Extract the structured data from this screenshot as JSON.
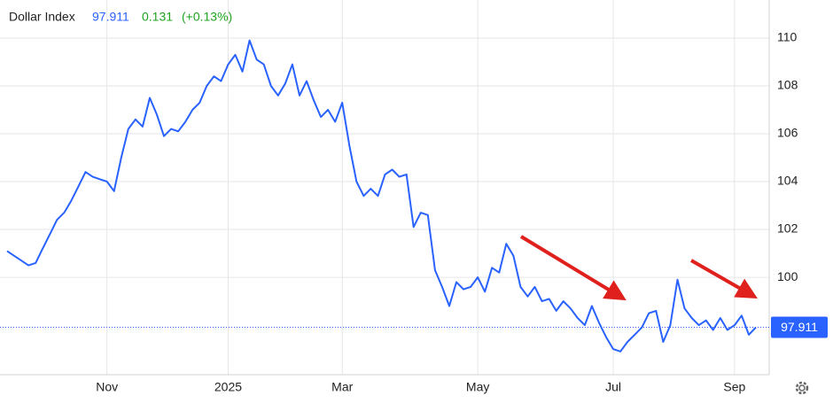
{
  "chart_data": {
    "type": "line",
    "title": "Dollar Index",
    "last_value": 97.911,
    "change": 0.131,
    "change_pct": "(+0.13%)",
    "categories": [
      null,
      null,
      null,
      null,
      null,
      null,
      null,
      null,
      null,
      null,
      null,
      null,
      null,
      null,
      "Nov",
      null,
      null,
      null,
      null,
      null,
      null,
      null,
      null,
      null,
      null,
      null,
      null,
      null,
      null,
      null,
      null,
      "2025",
      null,
      null,
      null,
      null,
      null,
      null,
      null,
      null,
      null,
      null,
      null,
      null,
      null,
      null,
      null,
      "Mar",
      null,
      null,
      null,
      null,
      null,
      null,
      null,
      null,
      null,
      null,
      null,
      null,
      null,
      null,
      null,
      null,
      null,
      null,
      "May",
      null,
      null,
      null,
      null,
      null,
      null,
      null,
      null,
      null,
      null,
      null,
      null,
      null,
      null,
      null,
      null,
      null,
      null,
      "Jul",
      null,
      null,
      null,
      null,
      null,
      null,
      null,
      null,
      null,
      null,
      null,
      null,
      null,
      null,
      null,
      null,
      "Sep",
      null,
      null,
      null
    ],
    "series": [
      {
        "name": "Dollar Index",
        "color": "#2962ff",
        "values": [
          101.1,
          100.9,
          100.7,
          100.5,
          100.6,
          101.2,
          101.8,
          102.4,
          102.7,
          103.2,
          103.8,
          104.4,
          104.2,
          104.1,
          104.0,
          103.6,
          105.0,
          106.2,
          106.6,
          106.3,
          107.5,
          106.8,
          105.9,
          106.2,
          106.1,
          106.5,
          107.0,
          107.3,
          108.0,
          108.4,
          108.2,
          108.9,
          109.3,
          108.6,
          109.9,
          109.1,
          108.9,
          108.0,
          107.6,
          108.1,
          108.9,
          107.6,
          108.2,
          107.4,
          106.7,
          107.0,
          106.5,
          107.3,
          105.5,
          104.0,
          103.4,
          103.7,
          103.4,
          104.3,
          104.5,
          104.2,
          104.3,
          102.1,
          102.7,
          102.6,
          100.3,
          99.6,
          98.8,
          99.8,
          99.5,
          99.6,
          100.0,
          99.4,
          100.4,
          100.2,
          101.4,
          100.9,
          99.6,
          99.2,
          99.6,
          99.0,
          99.1,
          98.6,
          99.0,
          98.7,
          98.3,
          98.0,
          98.8,
          98.1,
          97.5,
          97.0,
          96.9,
          97.3,
          97.6,
          97.9,
          98.5,
          98.6,
          97.3,
          98.0,
          99.9,
          98.7,
          98.3,
          98.0,
          98.2,
          97.8,
          98.3,
          97.8,
          98.0,
          98.4,
          97.6,
          97.911
        ]
      }
    ],
    "ylim": [
      95.93,
      111.59
    ],
    "yticks": [
      100,
      102,
      104,
      106,
      108,
      110
    ],
    "grid": true
  }
}
